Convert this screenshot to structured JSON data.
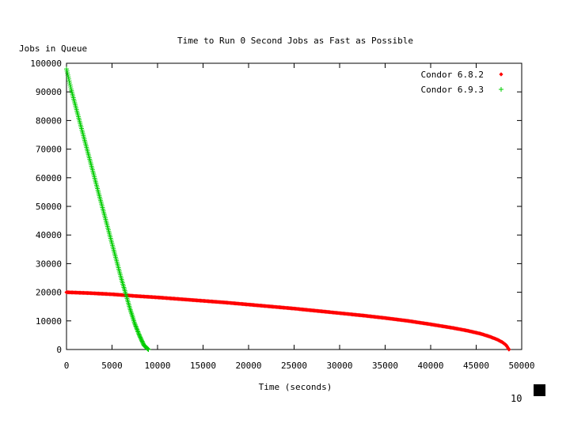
{
  "chart_data": {
    "type": "scatter",
    "title": "Time to Run 0 Second Jobs as Fast as Possible",
    "xlabel": "Time (seconds)",
    "ylabel": "Jobs in Queue",
    "xlim": [
      0,
      50000
    ],
    "ylim": [
      0,
      100000
    ],
    "x_ticks": [
      0,
      5000,
      10000,
      15000,
      20000,
      25000,
      30000,
      35000,
      40000,
      45000,
      50000
    ],
    "y_ticks": [
      0,
      10000,
      20000,
      30000,
      40000,
      50000,
      60000,
      70000,
      80000,
      90000,
      100000
    ],
    "x_tick_labels": [
      "0",
      "5000",
      "10000",
      "15000",
      "20000",
      "25000",
      "30000",
      "35000",
      "40000",
      "45000",
      "50000"
    ],
    "y_tick_labels": [
      "0",
      "10000",
      "20000",
      "30000",
      "40000",
      "50000",
      "60000",
      "70000",
      "80000",
      "90000",
      "100000"
    ],
    "grid": false,
    "legend_position": "top-right",
    "series": [
      {
        "name": "Condor 6.8.2",
        "color": "#ff0000",
        "marker": "diamond",
        "x": [
          0,
          2500,
          5000,
          7500,
          10000,
          12500,
          15000,
          17500,
          20000,
          22500,
          25000,
          27500,
          30000,
          32500,
          35000,
          37500,
          40000,
          42500,
          44000,
          45500,
          46500,
          47300,
          47900,
          48300,
          48600
        ],
        "y": [
          20000,
          19700,
          19300,
          18700,
          18200,
          17600,
          17000,
          16400,
          15700,
          15000,
          14300,
          13500,
          12700,
          11900,
          11000,
          10000,
          8800,
          7500,
          6600,
          5500,
          4500,
          3500,
          2500,
          1500,
          0
        ]
      },
      {
        "name": "Condor 6.9.3",
        "color": "#00cc00",
        "marker": "plus",
        "x": [
          0,
          500,
          1000,
          1500,
          2000,
          2500,
          3000,
          3500,
          4000,
          4500,
          5000,
          5500,
          6000,
          6500,
          7000,
          7500,
          8000,
          8500,
          9000
        ],
        "y": [
          98000,
          91000,
          85000,
          79000,
          73000,
          67000,
          61000,
          55000,
          49000,
          43000,
          37000,
          31000,
          25000,
          19500,
          14000,
          9000,
          5000,
          1500,
          0
        ]
      }
    ]
  },
  "page": {
    "number": "10",
    "marker_color": "#000000"
  }
}
